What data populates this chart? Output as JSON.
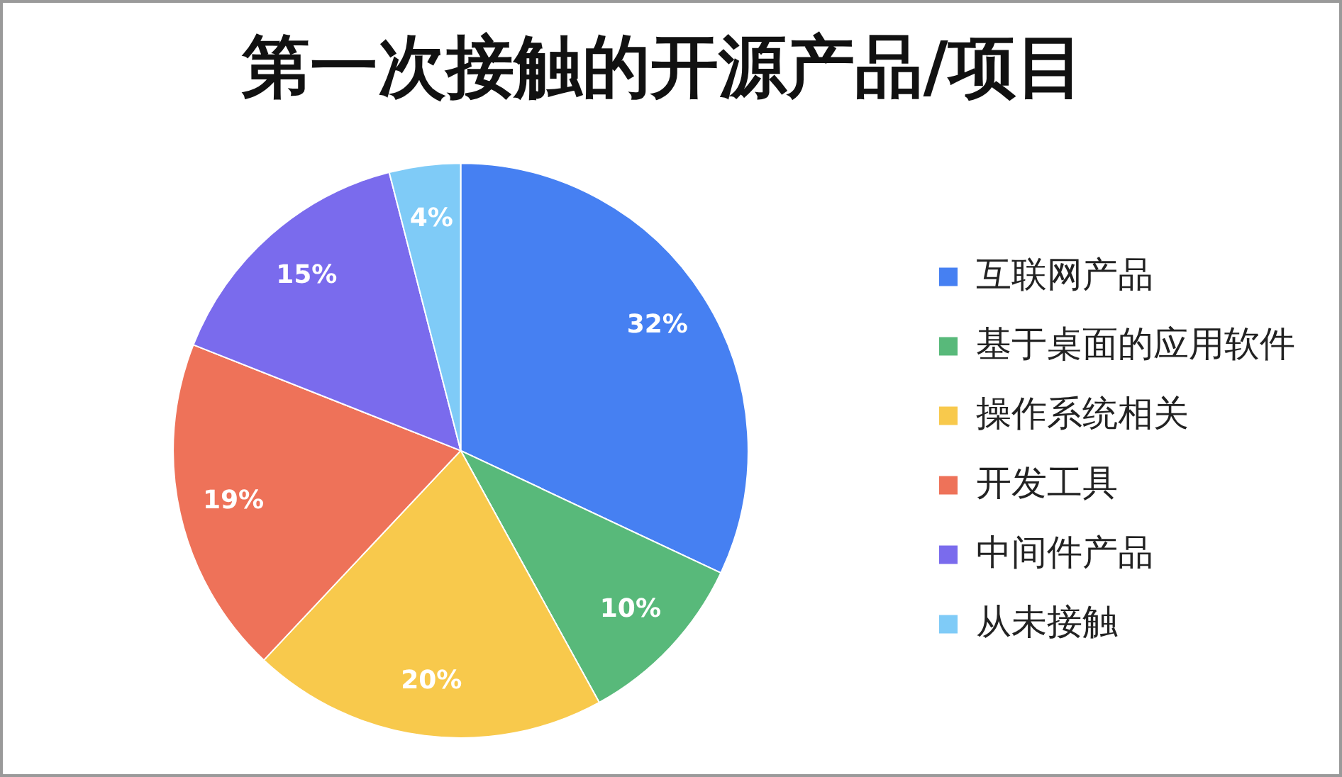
{
  "chart_data": {
    "type": "pie",
    "title": "第一次接触的开源产品/项目",
    "categories": [
      "互联网产品",
      "基于桌面的应用软件",
      "操作系统相关",
      "开发工具",
      "中间件产品",
      "从未接触"
    ],
    "values": [
      32,
      10,
      20,
      19,
      15,
      4
    ],
    "colors": [
      "#4680f2",
      "#58b97a",
      "#f8c94c",
      "#ee7259",
      "#7a6bed",
      "#7fcbf7"
    ],
    "value_labels": [
      "32%",
      "10%",
      "20%",
      "19%",
      "15%",
      "4%"
    ],
    "legend": "right"
  }
}
